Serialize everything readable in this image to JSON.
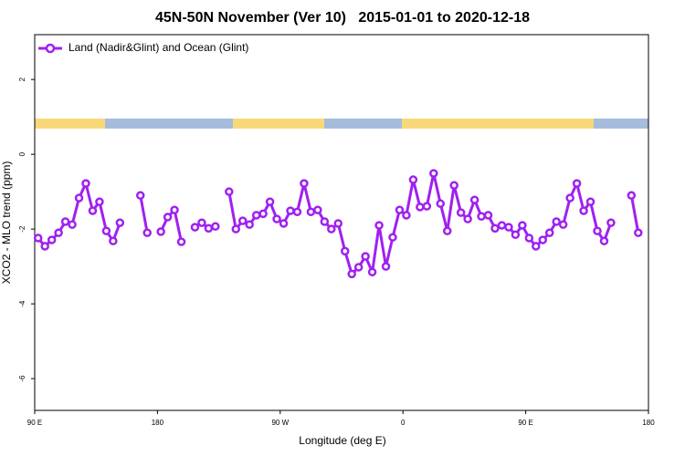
{
  "chart_data": {
    "type": "line",
    "title": "45N-50N November (Ver 10)   2015-01-01 to 2020-12-18",
    "xlabel": "Longitude (deg E)",
    "ylabel": "XCO2 - MLO trend (ppm)",
    "xlim": [
      90,
      540
    ],
    "ylim": [
      -6.85,
      3.2
    ],
    "xticks": [
      {
        "value": 90,
        "label": "90 E"
      },
      180,
      {
        "value": 270,
        "label": "90 W"
      },
      {
        "value": 360,
        "label": "0"
      },
      {
        "value": 450,
        "label": "90 E"
      },
      {
        "value": 540,
        "label": "180"
      }
    ],
    "yticks": [
      -6,
      -4,
      -2,
      0,
      2
    ],
    "legend": "top-left",
    "x": [
      92.5,
      97.5,
      102.5,
      107.5,
      112.5,
      117.5,
      122.5,
      127.5,
      132.5,
      137.5,
      142.5,
      147.5,
      152.5,
      157.5,
      162.5,
      167.5,
      172.5,
      177.5,
      182.5,
      187.5,
      192.5,
      197.5,
      202.5,
      207.5,
      212.5,
      217.5,
      222.5,
      227.5,
      232.5,
      237.5,
      242.5,
      247.5,
      252.5,
      257.5,
      262.5,
      267.5,
      272.5,
      277.5,
      282.5,
      287.5,
      292.5,
      297.5,
      302.5,
      307.5,
      312.5,
      317.5,
      322.5,
      327.5,
      332.5,
      337.5,
      342.5,
      347.5,
      352.5,
      357.5,
      362.5,
      367.5,
      372.5,
      377.5,
      382.5,
      387.5,
      392.5,
      397.5,
      402.5,
      407.5,
      412.5,
      417.5,
      422.5,
      427.5,
      432.5,
      437.5,
      442.5,
      447.5,
      452.5,
      457.5,
      462.5,
      467.5,
      472.5,
      477.5,
      482.5,
      487.5,
      492.5,
      497.5,
      502.5,
      507.5,
      512.5,
      517.5,
      522.5,
      527.5,
      532.5
    ],
    "series": [
      {
        "name": "Land (Nadir&Glint) and Ocean (Glint)",
        "color": "#a020f0",
        "values": [
          -2.24,
          -2.46,
          -2.29,
          -2.1,
          -1.8,
          -1.88,
          -1.17,
          -0.78,
          -1.51,
          -1.27,
          -2.05,
          -2.32,
          -1.83,
          null,
          null,
          -1.1,
          -2.1,
          null,
          -2.07,
          -1.68,
          -1.49,
          -2.34,
          null,
          -1.95,
          -1.83,
          -1.98,
          -1.93,
          null,
          -1.0,
          -2.0,
          -1.78,
          -1.88,
          -1.63,
          -1.59,
          -1.27,
          -1.73,
          -1.85,
          -1.51,
          -1.54,
          -0.78,
          -1.54,
          -1.49,
          -1.8,
          -2.0,
          -1.85,
          -2.59,
          -3.2,
          -3.02,
          -2.73,
          -3.15,
          -1.9,
          -3.0,
          -2.22,
          -1.49,
          -1.63,
          -0.68,
          -1.41,
          -1.39,
          -0.51,
          -1.32,
          -2.05,
          -0.83,
          -1.56,
          -1.73,
          -1.22,
          -1.66,
          -1.63,
          -1.98,
          -1.9,
          -1.95,
          -2.15,
          -1.9,
          -2.24,
          -2.46,
          -2.29,
          -2.1,
          -1.8,
          -1.88,
          -1.17,
          -0.78,
          -1.51,
          -1.27,
          -2.05,
          -2.32,
          -1.83,
          null,
          null,
          -1.1,
          -2.1
        ]
      }
    ]
  }
}
